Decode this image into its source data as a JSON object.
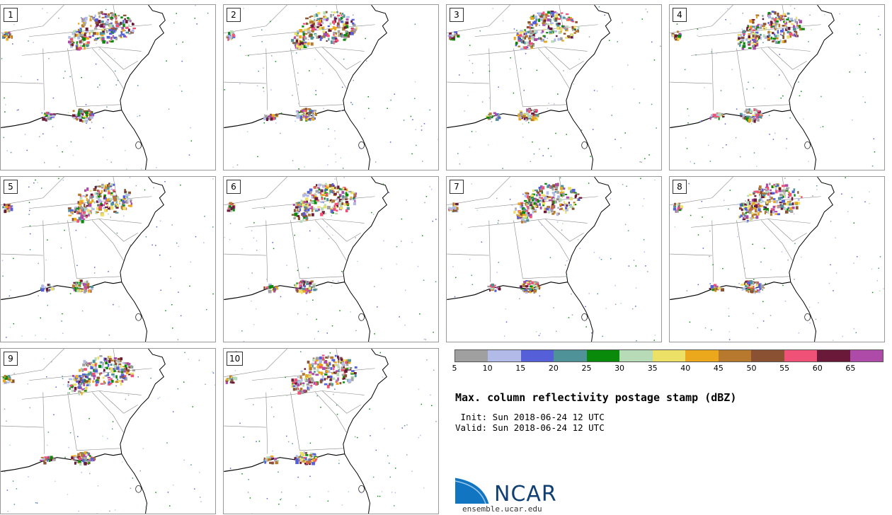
{
  "panels": [
    {
      "label": "1"
    },
    {
      "label": "2"
    },
    {
      "label": "3"
    },
    {
      "label": "4"
    },
    {
      "label": "5"
    },
    {
      "label": "6"
    },
    {
      "label": "7"
    },
    {
      "label": "8"
    },
    {
      "label": "9"
    },
    {
      "label": "10"
    }
  ],
  "colorbar": {
    "ticks": [
      "5",
      "10",
      "15",
      "20",
      "25",
      "30",
      "35",
      "40",
      "45",
      "50",
      "55",
      "60",
      "65"
    ],
    "colors": [
      "#a0a0a0",
      "#b2bbe8",
      "#5560d8",
      "#4f9298",
      "#0a8a0a",
      "#b7dbb7",
      "#ece066",
      "#eca81c",
      "#b7792e",
      "#8a5232",
      "#ef5276",
      "#6a1a38",
      "#ae4ba8"
    ]
  },
  "title": "Max. column reflectivity postage stamp (dBZ)",
  "init": " Init: Sun 2018-06-24 12 UTC",
  "valid": "Valid: Sun 2018-06-24 12 UTC",
  "logo": {
    "name": "NCAR",
    "site": "ensemble.ucar.edu"
  }
}
